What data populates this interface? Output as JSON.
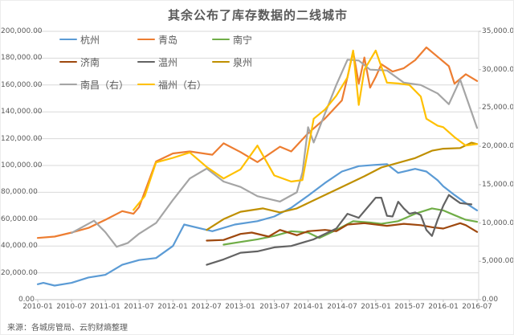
{
  "page": {
    "source": "来源：各城房管局、云豹财熵整理"
  },
  "chart_data": {
    "type": "line",
    "title": "其余公布了库存数据的二线城市",
    "x_start": "2010-01",
    "x_end": "2016-07",
    "grid": true,
    "legend_position": "inside-top-left",
    "x_tick_labels": [
      "2010-01",
      "2010-07",
      "2011-01",
      "2011-07",
      "2012-01",
      "2012-07",
      "2013-01",
      "2013-07",
      "2014-01",
      "2014-07",
      "2015-01",
      "2015-07",
      "2016-01",
      "2016-07"
    ],
    "left_axis": {
      "min": 0,
      "max": 200000,
      "step": 20000,
      "tick_labels": [
        "0.00",
        "20,000.00",
        "40,000.00",
        "60,000.00",
        "80,000.00",
        "100,000.00",
        "120,000.00",
        "140,000.00",
        "160,000.00",
        "180,000.00",
        "200,000.00"
      ]
    },
    "right_axis": {
      "min": 0,
      "max": 35000,
      "step": 5000,
      "tick_labels": [
        "0.00",
        "5,000.00",
        "10,000.00",
        "15,000.00",
        "20,000.00",
        "25,000.00",
        "30,000.00",
        "35,000.00"
      ]
    },
    "series": [
      {
        "name": "杭州",
        "axis": "left",
        "color": "#5B9BD5",
        "points": [
          [
            "2010-01",
            11500
          ],
          [
            "2010-02",
            12500
          ],
          [
            "2010-04",
            10500
          ],
          [
            "2010-07",
            12500
          ],
          [
            "2010-10",
            16500
          ],
          [
            "2011-01",
            18500
          ],
          [
            "2011-04",
            26000
          ],
          [
            "2011-07",
            29500
          ],
          [
            "2011-10",
            31000
          ],
          [
            "2012-01",
            40000
          ],
          [
            "2012-03",
            56000
          ],
          [
            "2012-08",
            51000
          ],
          [
            "2012-12",
            56000
          ],
          [
            "2013-04",
            58500
          ],
          [
            "2013-07",
            62000
          ],
          [
            "2013-10",
            68500
          ],
          [
            "2014-01",
            77500
          ],
          [
            "2014-04",
            87000
          ],
          [
            "2014-07",
            95500
          ],
          [
            "2014-10",
            99500
          ],
          [
            "2015-01",
            100500
          ],
          [
            "2015-03",
            101000
          ],
          [
            "2015-05",
            94500
          ],
          [
            "2015-08",
            97500
          ],
          [
            "2015-10",
            95500
          ],
          [
            "2015-12",
            89000
          ],
          [
            "2016-01",
            84500
          ],
          [
            "2016-03",
            78000
          ],
          [
            "2016-05",
            72000
          ],
          [
            "2016-07",
            66500
          ]
        ]
      },
      {
        "name": "青岛",
        "axis": "left",
        "color": "#ED7D31",
        "points": [
          [
            "2010-01",
            46000
          ],
          [
            "2010-04",
            47000
          ],
          [
            "2010-07",
            50000
          ],
          [
            "2010-10",
            53500
          ],
          [
            "2011-01",
            59500
          ],
          [
            "2011-04",
            66000
          ],
          [
            "2011-06",
            64000
          ],
          [
            "2011-07",
            69000
          ],
          [
            "2011-10",
            103000
          ],
          [
            "2012-01",
            109000
          ],
          [
            "2012-04",
            110500
          ],
          [
            "2012-08",
            108000
          ],
          [
            "2012-10",
            116500
          ],
          [
            "2013-01",
            110000
          ],
          [
            "2013-04",
            102500
          ],
          [
            "2013-08",
            114000
          ],
          [
            "2013-10",
            110500
          ],
          [
            "2014-01",
            124000
          ],
          [
            "2014-04",
            135000
          ],
          [
            "2014-07",
            148500
          ],
          [
            "2014-08",
            166000
          ],
          [
            "2014-09",
            185000
          ],
          [
            "2014-10",
            161000
          ],
          [
            "2014-11",
            180500
          ],
          [
            "2014-12",
            158000
          ],
          [
            "2015-01",
            166000
          ],
          [
            "2015-02",
            175500
          ],
          [
            "2015-04",
            170000
          ],
          [
            "2015-06",
            172500
          ],
          [
            "2015-08",
            178500
          ],
          [
            "2015-10",
            188000
          ],
          [
            "2015-12",
            181000
          ],
          [
            "2016-02",
            174000
          ],
          [
            "2016-03",
            161000
          ],
          [
            "2016-05",
            168000
          ],
          [
            "2016-07",
            163000
          ]
        ]
      },
      {
        "name": "南宁",
        "axis": "left",
        "color": "#70AD47",
        "points": [
          [
            "2012-10",
            41000
          ],
          [
            "2013-01",
            43000
          ],
          [
            "2013-04",
            45000
          ],
          [
            "2013-07",
            47500
          ],
          [
            "2013-10",
            51000
          ],
          [
            "2014-01",
            50000
          ],
          [
            "2014-03",
            46000
          ],
          [
            "2014-06",
            52000
          ],
          [
            "2014-09",
            58500
          ],
          [
            "2014-12",
            57500
          ],
          [
            "2015-02",
            56500
          ],
          [
            "2015-05",
            58500
          ],
          [
            "2015-08",
            64000
          ],
          [
            "2015-11",
            68000
          ],
          [
            "2016-01",
            66500
          ],
          [
            "2016-03",
            63000
          ],
          [
            "2016-05",
            59500
          ],
          [
            "2016-07",
            58000
          ]
        ]
      },
      {
        "name": "济南",
        "axis": "left",
        "color": "#9E480E",
        "points": [
          [
            "2012-07",
            44000
          ],
          [
            "2012-10",
            44500
          ],
          [
            "2013-01",
            49000
          ],
          [
            "2013-03",
            50000
          ],
          [
            "2013-06",
            47000
          ],
          [
            "2013-08",
            52000
          ],
          [
            "2013-11",
            48000
          ],
          [
            "2014-01",
            51000
          ],
          [
            "2014-04",
            52000
          ],
          [
            "2014-06",
            51000
          ],
          [
            "2014-08",
            56000
          ],
          [
            "2014-11",
            57000
          ],
          [
            "2015-03",
            55000
          ],
          [
            "2015-06",
            56500
          ],
          [
            "2015-09",
            55500
          ],
          [
            "2015-11",
            54000
          ],
          [
            "2016-01",
            53000
          ],
          [
            "2016-04",
            57000
          ],
          [
            "2016-05",
            55500
          ],
          [
            "2016-07",
            50500
          ]
        ]
      },
      {
        "name": "温州",
        "axis": "left",
        "color": "#636363",
        "points": [
          [
            "2012-07",
            26000
          ],
          [
            "2012-10",
            30000
          ],
          [
            "2013-01",
            35000
          ],
          [
            "2013-04",
            36000
          ],
          [
            "2013-07",
            39000
          ],
          [
            "2013-10",
            40000
          ],
          [
            "2014-02",
            45000
          ],
          [
            "2014-06",
            53000
          ],
          [
            "2014-08",
            64000
          ],
          [
            "2014-10",
            61000
          ],
          [
            "2014-12",
            71000
          ],
          [
            "2015-01",
            76000
          ],
          [
            "2015-02",
            76000
          ],
          [
            "2015-03",
            62500
          ],
          [
            "2015-04",
            62000
          ],
          [
            "2015-05",
            73000
          ],
          [
            "2015-06",
            68000
          ],
          [
            "2015-07",
            64000
          ],
          [
            "2015-08",
            65000
          ],
          [
            "2015-09",
            63000
          ],
          [
            "2015-10",
            52000
          ],
          [
            "2015-11",
            47500
          ],
          [
            "2015-12",
            59500
          ],
          [
            "2016-01",
            70000
          ],
          [
            "2016-02",
            78000
          ],
          [
            "2016-03",
            75000
          ],
          [
            "2016-04",
            72000
          ],
          [
            "2016-06",
            71000
          ]
        ]
      },
      {
        "name": "泉州",
        "axis": "left",
        "color": "#BF8F00",
        "points": [
          [
            "2012-07",
            52000
          ],
          [
            "2012-10",
            60000
          ],
          [
            "2013-01",
            65500
          ],
          [
            "2013-05",
            68000
          ],
          [
            "2013-08",
            65000
          ],
          [
            "2013-11",
            68000
          ],
          [
            "2014-02",
            74000
          ],
          [
            "2014-05",
            80000
          ],
          [
            "2014-07",
            84000
          ],
          [
            "2014-11",
            92000
          ],
          [
            "2015-02",
            98500
          ],
          [
            "2015-05",
            102000
          ],
          [
            "2015-08",
            105500
          ],
          [
            "2015-11",
            111000
          ],
          [
            "2016-01",
            112500
          ],
          [
            "2016-04",
            113000
          ],
          [
            "2016-06",
            117000
          ],
          [
            "2016-07",
            116000
          ]
        ]
      },
      {
        "name": "南昌（右）",
        "axis": "right",
        "color": "#A5A5A5",
        "points": [
          [
            "2010-07",
            8700
          ],
          [
            "2010-11",
            10300
          ],
          [
            "2011-01",
            8800
          ],
          [
            "2011-03",
            6900
          ],
          [
            "2011-05",
            7400
          ],
          [
            "2011-07",
            8600
          ],
          [
            "2011-10",
            10000
          ],
          [
            "2012-01",
            13000
          ],
          [
            "2012-04",
            15800
          ],
          [
            "2012-07",
            17100
          ],
          [
            "2012-10",
            15400
          ],
          [
            "2013-01",
            14700
          ],
          [
            "2013-04",
            13500
          ],
          [
            "2013-08",
            12800
          ],
          [
            "2013-11",
            14000
          ],
          [
            "2013-12",
            16600
          ],
          [
            "2014-01",
            22500
          ],
          [
            "2014-02",
            20500
          ],
          [
            "2014-04",
            24300
          ],
          [
            "2014-06",
            28000
          ],
          [
            "2014-08",
            31300
          ],
          [
            "2014-10",
            31200
          ],
          [
            "2014-12",
            30000
          ],
          [
            "2015-03",
            29900
          ],
          [
            "2015-06",
            28300
          ],
          [
            "2015-09",
            28000
          ],
          [
            "2015-12",
            26900
          ],
          [
            "2016-02",
            25500
          ],
          [
            "2016-04",
            28700
          ],
          [
            "2016-07",
            22400
          ]
        ]
      },
      {
        "name": "福州（右）",
        "axis": "right",
        "color": "#FFC000",
        "points": [
          [
            "2011-06",
            11700
          ],
          [
            "2011-08",
            13500
          ],
          [
            "2011-10",
            17900
          ],
          [
            "2012-01",
            18500
          ],
          [
            "2012-04",
            19200
          ],
          [
            "2012-07",
            17300
          ],
          [
            "2012-10",
            15800
          ],
          [
            "2013-01",
            17000
          ],
          [
            "2013-04",
            20100
          ],
          [
            "2013-07",
            16200
          ],
          [
            "2013-10",
            15400
          ],
          [
            "2013-12",
            15600
          ],
          [
            "2014-02",
            23600
          ],
          [
            "2014-04",
            24800
          ],
          [
            "2014-06",
            26600
          ],
          [
            "2014-08",
            29000
          ],
          [
            "2014-09",
            32500
          ],
          [
            "2014-10",
            25400
          ],
          [
            "2014-11",
            30000
          ],
          [
            "2015-01",
            32500
          ],
          [
            "2015-03",
            28300
          ],
          [
            "2015-05",
            28200
          ],
          [
            "2015-07",
            28000
          ],
          [
            "2015-09",
            26500
          ],
          [
            "2015-10",
            23600
          ],
          [
            "2015-12",
            22700
          ],
          [
            "2016-01",
            22500
          ],
          [
            "2016-03",
            21200
          ],
          [
            "2016-05",
            20100
          ],
          [
            "2016-07",
            20300
          ]
        ]
      }
    ]
  }
}
